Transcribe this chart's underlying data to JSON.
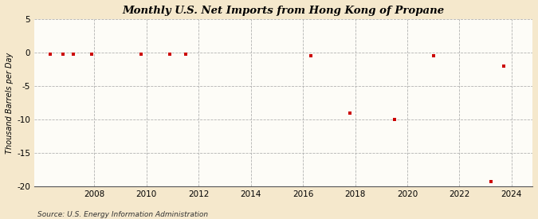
{
  "title": "Monthly U.S. Net Imports from Hong Kong of Propane",
  "ylabel": "Thousand Barrels per Day",
  "source": "Source: U.S. Energy Information Administration",
  "xlim": [
    2005.7,
    2024.8
  ],
  "ylim": [
    -20,
    5
  ],
  "yticks": [
    5,
    0,
    -5,
    -10,
    -15,
    -20
  ],
  "xticks": [
    2008,
    2010,
    2012,
    2014,
    2016,
    2018,
    2020,
    2022,
    2024
  ],
  "background_color": "#f5e8cc",
  "plot_bg_color": "#fdfcf7",
  "grid_color": "#aaaaaa",
  "marker_color": "#cc0000",
  "data_points": [
    [
      2006.3,
      -0.3
    ],
    [
      2006.8,
      -0.3
    ],
    [
      2007.2,
      -0.3
    ],
    [
      2007.9,
      -0.3
    ],
    [
      2009.8,
      -0.3
    ],
    [
      2010.9,
      -0.3
    ],
    [
      2011.5,
      -0.3
    ],
    [
      2016.3,
      -0.5
    ],
    [
      2021.0,
      -0.5
    ],
    [
      2017.8,
      -9.0
    ],
    [
      2019.5,
      -10.0
    ],
    [
      2023.2,
      -19.3
    ],
    [
      2023.7,
      -2.0
    ]
  ]
}
